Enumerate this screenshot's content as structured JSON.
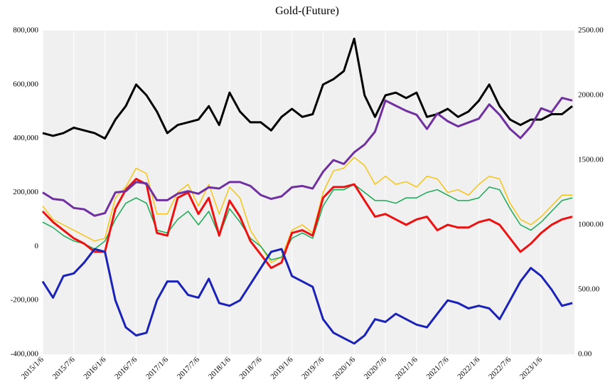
{
  "chart_data": {
    "type": "line",
    "title": "Gold-(Future)",
    "categories": [
      "2015/1/6",
      null,
      null,
      "2015/7/6",
      null,
      null,
      "2016/1/6",
      null,
      null,
      "2016/7/6",
      null,
      null,
      "2017/1/6",
      null,
      null,
      "2017/7/6",
      null,
      null,
      "2018/1/6",
      null,
      null,
      "2018/7/6",
      null,
      null,
      "2019/1/6",
      null,
      null,
      "2019/7/6",
      null,
      null,
      "2020/1/6",
      null,
      null,
      "2020/7/6",
      null,
      null,
      "2021/1/6",
      null,
      null,
      "2021/7/6",
      null,
      null,
      "2022/1/6",
      null,
      null,
      "2022/7/6",
      null,
      null,
      "2023/1/6",
      null,
      null,
      null
    ],
    "ylim": [
      -400000,
      800000
    ],
    "yticks": [
      {
        "value": -400000,
        "label": "-400,000"
      },
      {
        "value": -200000,
        "label": "-200,000"
      },
      0,
      {
        "value": 200000,
        "label": "200,000"
      },
      {
        "value": 400000,
        "label": "400,000"
      },
      {
        "value": 600000,
        "label": "600,000"
      },
      {
        "value": 800000,
        "label": "800,000"
      }
    ],
    "y2lim": [
      0,
      2500
    ],
    "y2ticks": [
      {
        "value": 0,
        "label": "0.00"
      },
      {
        "value": 500,
        "label": "500.00"
      },
      {
        "value": 1000,
        "label": "1000.00"
      },
      {
        "value": 1500,
        "label": "1500.00"
      },
      {
        "value": 2000,
        "label": "2000.00"
      },
      {
        "value": 2500,
        "label": "2500.00"
      }
    ],
    "grid": true,
    "series": [
      {
        "color": "#f5c518",
        "width": 1.5,
        "values": [
          150000,
          100000,
          80000,
          60000,
          40000,
          20000,
          30000,
          180000,
          220000,
          290000,
          270000,
          120000,
          120000,
          200000,
          230000,
          150000,
          230000,
          120000,
          220000,
          180000,
          60000,
          0,
          -60000,
          -40000,
          60000,
          80000,
          50000,
          200000,
          280000,
          290000,
          330000,
          300000,
          230000,
          260000,
          230000,
          240000,
          220000,
          260000,
          250000,
          200000,
          210000,
          190000,
          230000,
          260000,
          250000,
          160000,
          100000,
          80000,
          110000,
          150000,
          190000,
          190000
        ]
      },
      {
        "color": "#1aaa55",
        "width": 1.5,
        "values": [
          90000,
          70000,
          40000,
          20000,
          10000,
          -10000,
          20000,
          100000,
          160000,
          180000,
          160000,
          60000,
          50000,
          100000,
          130000,
          80000,
          130000,
          40000,
          140000,
          90000,
          30000,
          0,
          -50000,
          -40000,
          30000,
          50000,
          30000,
          150000,
          210000,
          210000,
          230000,
          200000,
          170000,
          170000,
          160000,
          180000,
          180000,
          200000,
          210000,
          190000,
          170000,
          170000,
          180000,
          220000,
          210000,
          140000,
          80000,
          60000,
          90000,
          130000,
          170000,
          180000
        ]
      },
      {
        "color": "#ee1111",
        "width": 3,
        "values": [
          130000,
          90000,
          60000,
          30000,
          10000,
          -20000,
          -20000,
          140000,
          210000,
          250000,
          230000,
          50000,
          40000,
          180000,
          200000,
          120000,
          180000,
          40000,
          170000,
          110000,
          20000,
          -30000,
          -80000,
          -60000,
          50000,
          60000,
          40000,
          180000,
          220000,
          220000,
          230000,
          170000,
          110000,
          120000,
          100000,
          80000,
          100000,
          110000,
          60000,
          80000,
          70000,
          70000,
          90000,
          100000,
          80000,
          30000,
          -20000,
          10000,
          50000,
          80000,
          100000,
          110000
        ]
      },
      {
        "color": "#1a22b8",
        "width": 3,
        "values": [
          -130000,
          -190000,
          -110000,
          -100000,
          -60000,
          -10000,
          -20000,
          -200000,
          -300000,
          -330000,
          -320000,
          -200000,
          -130000,
          -130000,
          -180000,
          -190000,
          -120000,
          -210000,
          -220000,
          -200000,
          -140000,
          -80000,
          -20000,
          -10000,
          -110000,
          -130000,
          -150000,
          -270000,
          -320000,
          -340000,
          -360000,
          -330000,
          -270000,
          -280000,
          -250000,
          -270000,
          -290000,
          -300000,
          -250000,
          -200000,
          -210000,
          -230000,
          -220000,
          -230000,
          -270000,
          -200000,
          -130000,
          -80000,
          -110000,
          -160000,
          -220000,
          -210000
        ]
      },
      {
        "color": "#000000",
        "width": 3,
        "values": [
          420000,
          410000,
          420000,
          440000,
          430000,
          420000,
          400000,
          470000,
          520000,
          600000,
          560000,
          500000,
          420000,
          450000,
          460000,
          470000,
          520000,
          450000,
          570000,
          500000,
          460000,
          460000,
          430000,
          480000,
          510000,
          480000,
          490000,
          600000,
          620000,
          650000,
          770000,
          560000,
          480000,
          560000,
          570000,
          550000,
          570000,
          480000,
          490000,
          510000,
          480000,
          500000,
          540000,
          600000,
          520000,
          470000,
          450000,
          470000,
          470000,
          490000,
          490000,
          520000
        ]
      },
      {
        "color": "#7030a0",
        "width": 3,
        "axis": "y2",
        "values": [
          1250,
          1200,
          1190,
          1130,
          1120,
          1070,
          1090,
          1250,
          1260,
          1330,
          1320,
          1190,
          1190,
          1240,
          1260,
          1240,
          1290,
          1280,
          1330,
          1330,
          1300,
          1230,
          1200,
          1220,
          1290,
          1300,
          1280,
          1410,
          1500,
          1470,
          1560,
          1620,
          1720,
          1960,
          1920,
          1880,
          1850,
          1740,
          1860,
          1800,
          1760,
          1790,
          1820,
          1930,
          1850,
          1740,
          1670,
          1760,
          1900,
          1870,
          1980,
          1960
        ]
      }
    ]
  }
}
